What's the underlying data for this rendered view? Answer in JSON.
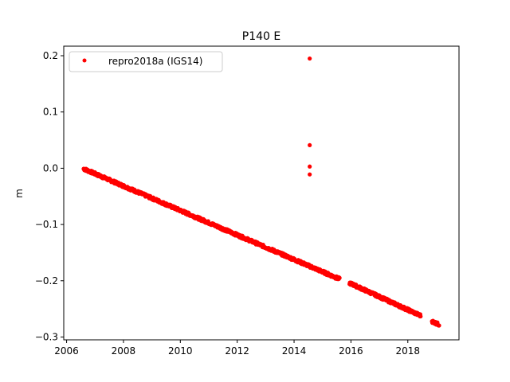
{
  "chart_data": {
    "type": "scatter",
    "title": "P140 E",
    "xlabel": "",
    "ylabel": "m",
    "xlim": [
      2005.9,
      2019.8
    ],
    "ylim": [
      -0.305,
      0.217
    ],
    "x_ticks": [
      2006,
      2008,
      2010,
      2012,
      2014,
      2016,
      2018
    ],
    "y_ticks": [
      0.2,
      0.1,
      0.0,
      -0.1,
      -0.2,
      -0.3
    ],
    "y_tick_labels": [
      "0.2",
      "0.1",
      "0.0",
      "−0.1",
      "−0.2",
      "−0.3"
    ],
    "legend": {
      "position": "top-left",
      "entries": [
        "repro2018a (IGS14)"
      ]
    },
    "series": [
      {
        "name": "repro2018a (IGS14)",
        "color": "#ff0000",
        "trend_segments": [
          {
            "x_start": 2006.6,
            "x_end": 2015.6,
            "y_start": -0.001,
            "y_end": -0.197,
            "step": 0.012
          },
          {
            "x_start": 2015.95,
            "x_end": 2018.45,
            "y_start": -0.204,
            "y_end": -0.262,
            "step": 0.012
          },
          {
            "x_start": 2018.85,
            "x_end": 2019.1,
            "y_start": -0.272,
            "y_end": -0.278,
            "step": 0.012
          }
        ],
        "outliers": [
          {
            "x": 2014.55,
            "y": 0.195
          },
          {
            "x": 2014.55,
            "y": 0.041
          },
          {
            "x": 2014.55,
            "y": 0.003
          },
          {
            "x": 2014.55,
            "y": -0.011
          }
        ]
      }
    ]
  }
}
